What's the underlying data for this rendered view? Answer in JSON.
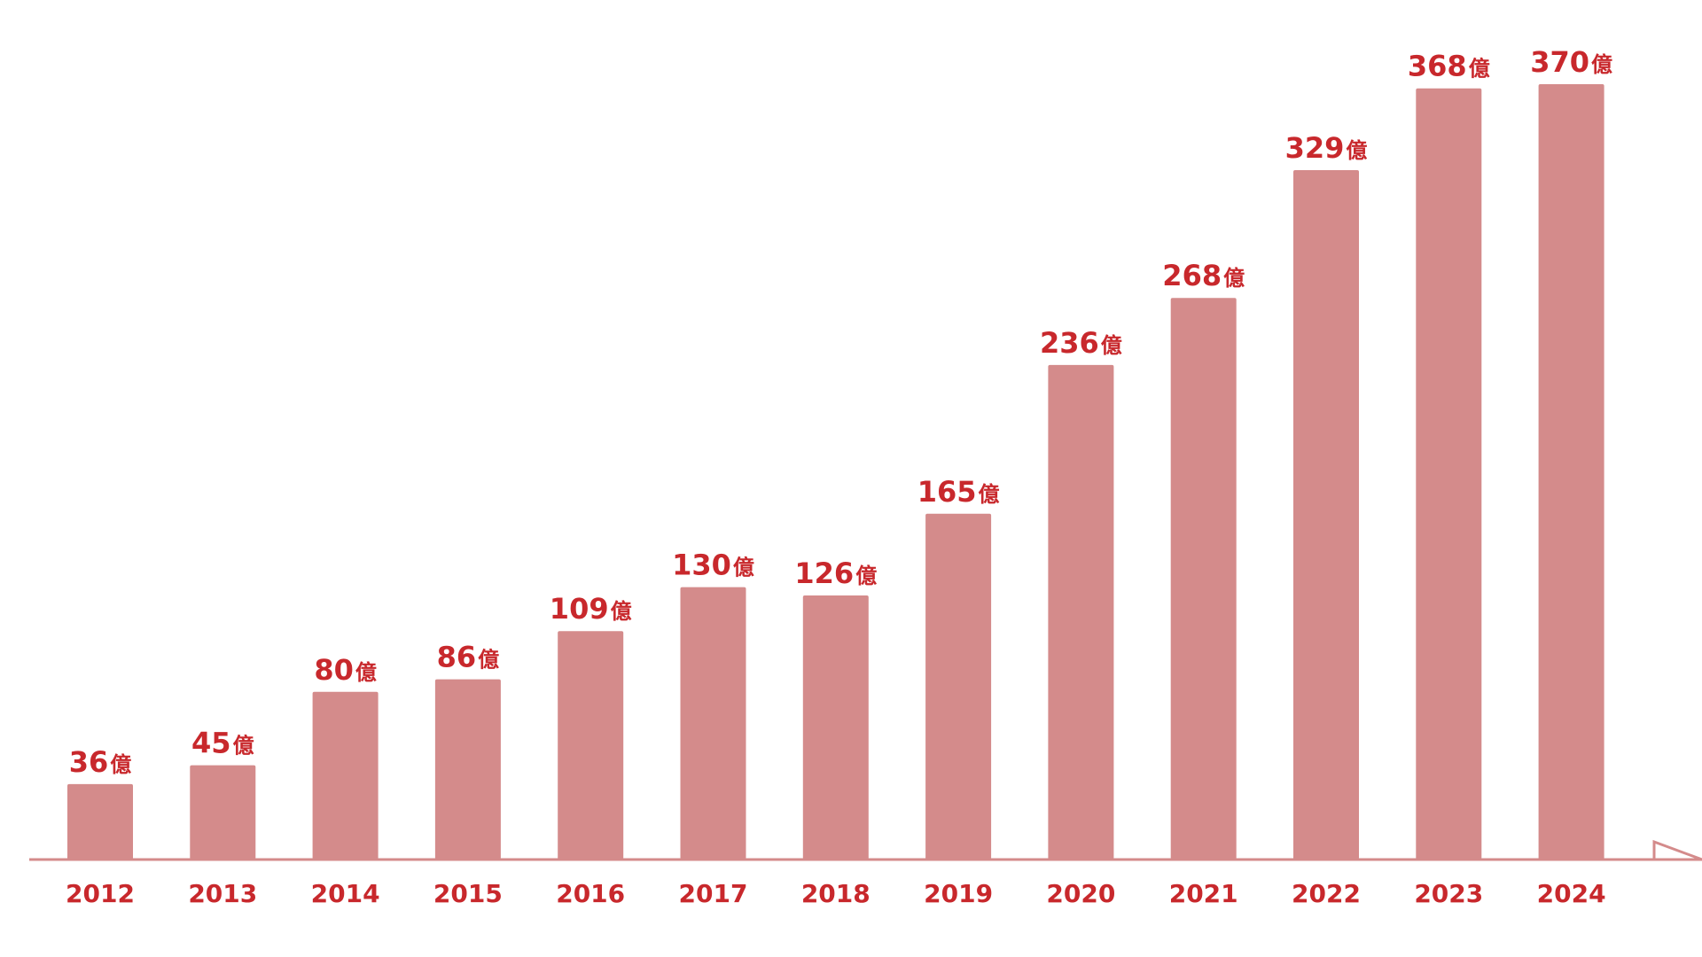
{
  "chart_data": {
    "type": "bar",
    "categories": [
      "2012",
      "2013",
      "2014",
      "2015",
      "2016",
      "2017",
      "2018",
      "2019",
      "2020",
      "2021",
      "2022",
      "2023",
      "2024"
    ],
    "values": [
      36,
      45,
      80,
      86,
      109,
      130,
      126,
      165,
      236,
      268,
      329,
      368,
      370
    ],
    "value_labels": [
      "36",
      "45",
      "80",
      "86",
      "109",
      "130",
      "126",
      "165",
      "236",
      "268",
      "329",
      "368",
      "370"
    ],
    "unit_suffix": "億",
    "title": "",
    "xlabel": "",
    "ylabel": "",
    "ylim": [
      0,
      370
    ],
    "grid": false,
    "legend": "none",
    "colors": {
      "bar": "#d48b8b",
      "label": "#c8282c",
      "axis": "#d48b8b"
    }
  }
}
